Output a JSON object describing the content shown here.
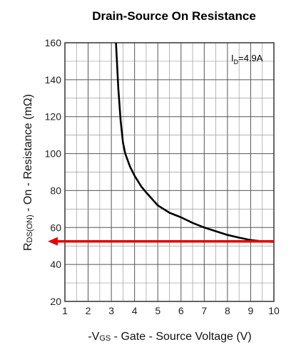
{
  "chart_data": {
    "type": "line",
    "title": "Drain-Source On Resistance",
    "xlabel_prefix": "-V",
    "xlabel_sub": "GS",
    "xlabel_rest": " - Gate - Source Voltage (V)",
    "ylabel_prefix": "R",
    "ylabel_sub": "DS(ON)",
    "ylabel_rest": " - On - Resistance (mΩ)",
    "annotation_prefix": "I",
    "annotation_sub": "D",
    "annotation_rest": "=4.9A",
    "xlim": [
      1,
      10
    ],
    "ylim": [
      20,
      160
    ],
    "xticks": [
      1,
      2,
      3,
      4,
      5,
      6,
      7,
      8,
      9,
      10
    ],
    "yticks": [
      20,
      40,
      60,
      80,
      100,
      120,
      140,
      160
    ],
    "grid": true,
    "series": [
      {
        "color": "#000000",
        "x": [
          3.2,
          3.3,
          3.4,
          3.5,
          3.6,
          3.8,
          4.0,
          4.3,
          4.5,
          5.0,
          5.5,
          6.0,
          6.5,
          7.0,
          7.5,
          8.0,
          8.5,
          9.0,
          9.5,
          10.0
        ],
        "y": [
          160,
          135,
          118,
          106,
          100,
          93,
          88,
          82,
          79,
          72,
          68,
          65.5,
          62.5,
          60,
          58,
          56,
          54.5,
          53.2,
          52.5,
          52.2
        ]
      }
    ],
    "reference_arrow": {
      "color": "#e60000",
      "y": 52.5,
      "x_from": 10,
      "x_to": 1
    }
  }
}
